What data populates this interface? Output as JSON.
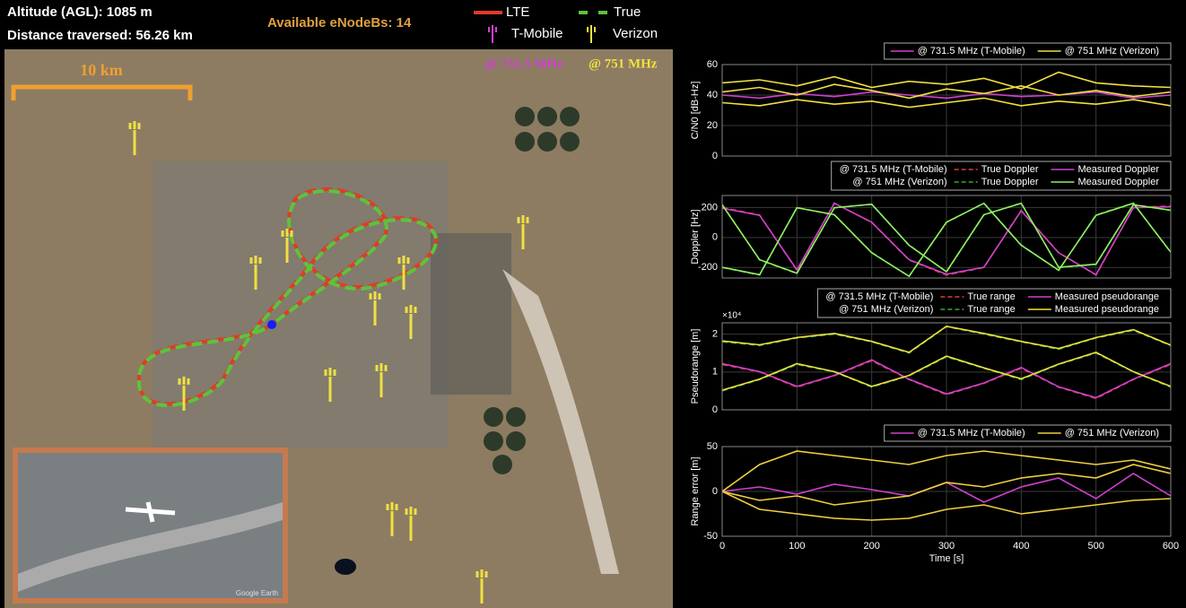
{
  "hud": {
    "altitude": "Altitude (AGL): 1085 m",
    "distance": "Distance traversed: 56.26 km",
    "enodebs": "Available eNodeBs: 14"
  },
  "map_legend": {
    "lte": "LTE",
    "true": "True",
    "tmobile": "T-Mobile",
    "verizon": "Verizon",
    "freq_tmobile": "@ 731.5 MHz",
    "freq_verizon": "@ 751 MHz"
  },
  "map_scale": "10 km",
  "inset_credit": "Google Earth",
  "chart_data": [
    {
      "type": "line",
      "ylabel": "C/N0 [dB-Hz]",
      "xlim": [
        0,
        600
      ],
      "xticks": [
        0,
        100,
        200,
        300,
        400,
        500,
        600
      ],
      "ylim": [
        0,
        60
      ],
      "yticks": [
        0,
        20,
        40,
        60
      ],
      "grid": true,
      "x": [
        0,
        50,
        100,
        150,
        200,
        250,
        300,
        350,
        400,
        450,
        500,
        550,
        600
      ],
      "series": [
        {
          "name": "@ 731.5 MHz (T-Mobile)",
          "color": "#d040d0",
          "values": [
            [
              40,
              38,
              41,
              39,
              42,
              40,
              38,
              41,
              39,
              40,
              42,
              38,
              40
            ]
          ]
        },
        {
          "name": "@ 751 MHz (Verizon)",
          "color": "#f0e040",
          "values": [
            [
              42,
              45,
              40,
              47,
              43,
              38,
              44,
              41,
              46,
              40,
              43,
              39,
              42
            ],
            [
              35,
              33,
              37,
              34,
              36,
              32,
              35,
              38,
              33,
              36,
              34,
              37,
              33
            ],
            [
              48,
              50,
              46,
              52,
              45,
              49,
              47,
              51,
              44,
              55,
              48,
              46,
              45
            ]
          ]
        }
      ]
    },
    {
      "type": "line",
      "ylabel": "Doppler [Hz]",
      "xlim": [
        0,
        600
      ],
      "xticks": [
        0,
        100,
        200,
        300,
        400,
        500,
        600
      ],
      "ylim": [
        -270,
        280
      ],
      "yticks": [
        -200,
        0,
        200
      ],
      "grid": true,
      "x": [
        0,
        50,
        100,
        150,
        200,
        250,
        300,
        350,
        400,
        450,
        500,
        550,
        600
      ],
      "series_groups": [
        {
          "name": "@ 731.5 MHz (T-Mobile)",
          "series": [
            {
              "name": "True Doppler",
              "color": "#e04030",
              "dash": true,
              "values": [
                [
                  200,
                  150,
                  -220,
                  230,
                  100,
                  -150,
                  -250,
                  -200,
                  180,
                  -100,
                  -250,
                  200,
                  210
                ]
              ]
            },
            {
              "name": "Measured Doppler",
              "color": "#d040d0",
              "values": [
                [
                  195,
                  148,
                  -215,
                  228,
                  102,
                  -148,
                  -245,
                  -198,
                  178,
                  -102,
                  -248,
                  198,
                  205
                ]
              ]
            }
          ]
        },
        {
          "name": "@ 751 MHz (Verizon)",
          "series": [
            {
              "name": "True Doppler",
              "color": "#30b030",
              "dash": true,
              "values": [
                [
                  220,
                  -150,
                  -240,
                  200,
                  220,
                  -50,
                  -230,
                  150,
                  230,
                  -200,
                  -180,
                  220,
                  180
                ],
                [
                  -200,
                  -250,
                  200,
                  150,
                  -100,
                  -260,
                  100,
                  230,
                  -50,
                  -220,
                  150,
                  230,
                  -100
                ]
              ]
            },
            {
              "name": "Measured Doppler",
              "color": "#90f060",
              "values": [
                [
                  218,
                  -148,
                  -238,
                  198,
                  222,
                  -52,
                  -228,
                  152,
                  228,
                  -198,
                  -178,
                  218,
                  182
                ],
                [
                  -198,
                  -248,
                  198,
                  152,
                  -102,
                  -258,
                  102,
                  228,
                  -52,
                  -218,
                  148,
                  228,
                  -98
                ]
              ]
            }
          ]
        }
      ]
    },
    {
      "type": "line",
      "ylabel": "Pseudorange [m]",
      "y_exponent": "×10⁴",
      "xlim": [
        0,
        600
      ],
      "xticks": [
        0,
        100,
        200,
        300,
        400,
        500,
        600
      ],
      "ylim": [
        0,
        23000
      ],
      "yticks": [
        0,
        {
          "value": 10000,
          "label": "1"
        },
        {
          "value": 20000,
          "label": "2"
        }
      ],
      "grid": true,
      "x": [
        0,
        50,
        100,
        150,
        200,
        250,
        300,
        350,
        400,
        450,
        500,
        550,
        600
      ],
      "series_groups": [
        {
          "name": "@ 731.5 MHz (T-Mobile)",
          "series": [
            {
              "name": "True range",
              "color": "#e04030",
              "dash": true,
              "values": [
                [
                  12000,
                  10000,
                  6000,
                  9000,
                  13000,
                  8000,
                  4000,
                  7000,
                  11000,
                  6000,
                  3000,
                  8000,
                  12000
                ]
              ]
            },
            {
              "name": "Measured pseudorange",
              "color": "#d040d0",
              "values": [
                [
                  12200,
                  10100,
                  6200,
                  9100,
                  13200,
                  8100,
                  4200,
                  7100,
                  11200,
                  6100,
                  3200,
                  8100,
                  12200
                ]
              ]
            }
          ]
        },
        {
          "name": "@ 751 MHz (Verizon)",
          "series": [
            {
              "name": "True range",
              "color": "#30b030",
              "dash": true,
              "values": [
                [
                  18000,
                  17000,
                  19000,
                  20000,
                  18000,
                  15000,
                  22000,
                  20000,
                  18000,
                  16000,
                  19000,
                  21000,
                  17000
                ],
                [
                  5000,
                  8000,
                  12000,
                  10000,
                  6000,
                  9000,
                  14000,
                  11000,
                  8000,
                  12000,
                  15000,
                  10000,
                  6000
                ]
              ]
            },
            {
              "name": "Measured pseudorange",
              "color": "#f0e040",
              "values": [
                [
                  18200,
                  17200,
                  19100,
                  20200,
                  18100,
                  15200,
                  22100,
                  20200,
                  18100,
                  16200,
                  19100,
                  21200,
                  17100
                ],
                [
                  5200,
                  8100,
                  12200,
                  10100,
                  6200,
                  9100,
                  14200,
                  11100,
                  8200,
                  12100,
                  15200,
                  10100,
                  6200
                ]
              ]
            }
          ]
        }
      ]
    },
    {
      "type": "line",
      "ylabel": "Range error [m]",
      "xlabel": "Time [s]",
      "xlim": [
        0,
        600
      ],
      "xticks": [
        0,
        100,
        200,
        300,
        400,
        500,
        600
      ],
      "ylim": [
        -50,
        50
      ],
      "yticks": [
        -50,
        0,
        50
      ],
      "grid": true,
      "x": [
        0,
        50,
        100,
        150,
        200,
        250,
        300,
        350,
        400,
        450,
        500,
        550,
        600
      ],
      "series": [
        {
          "name": "@ 731.5 MHz (T-Mobile)",
          "color": "#d040d0",
          "values": [
            [
              0,
              5,
              -3,
              8,
              2,
              -5,
              10,
              -12,
              5,
              15,
              -8,
              20,
              -5
            ]
          ]
        },
        {
          "name": "@ 751 MHz (Verizon)",
          "color": "#f0d040",
          "values": [
            [
              0,
              30,
              45,
              40,
              35,
              30,
              40,
              45,
              40,
              35,
              30,
              35,
              25
            ],
            [
              0,
              -10,
              -5,
              -15,
              -10,
              -5,
              10,
              5,
              15,
              20,
              15,
              30,
              20
            ],
            [
              0,
              -20,
              -25,
              -30,
              -32,
              -30,
              -20,
              -15,
              -25,
              -20,
              -15,
              -10,
              -8
            ]
          ]
        }
      ]
    }
  ]
}
